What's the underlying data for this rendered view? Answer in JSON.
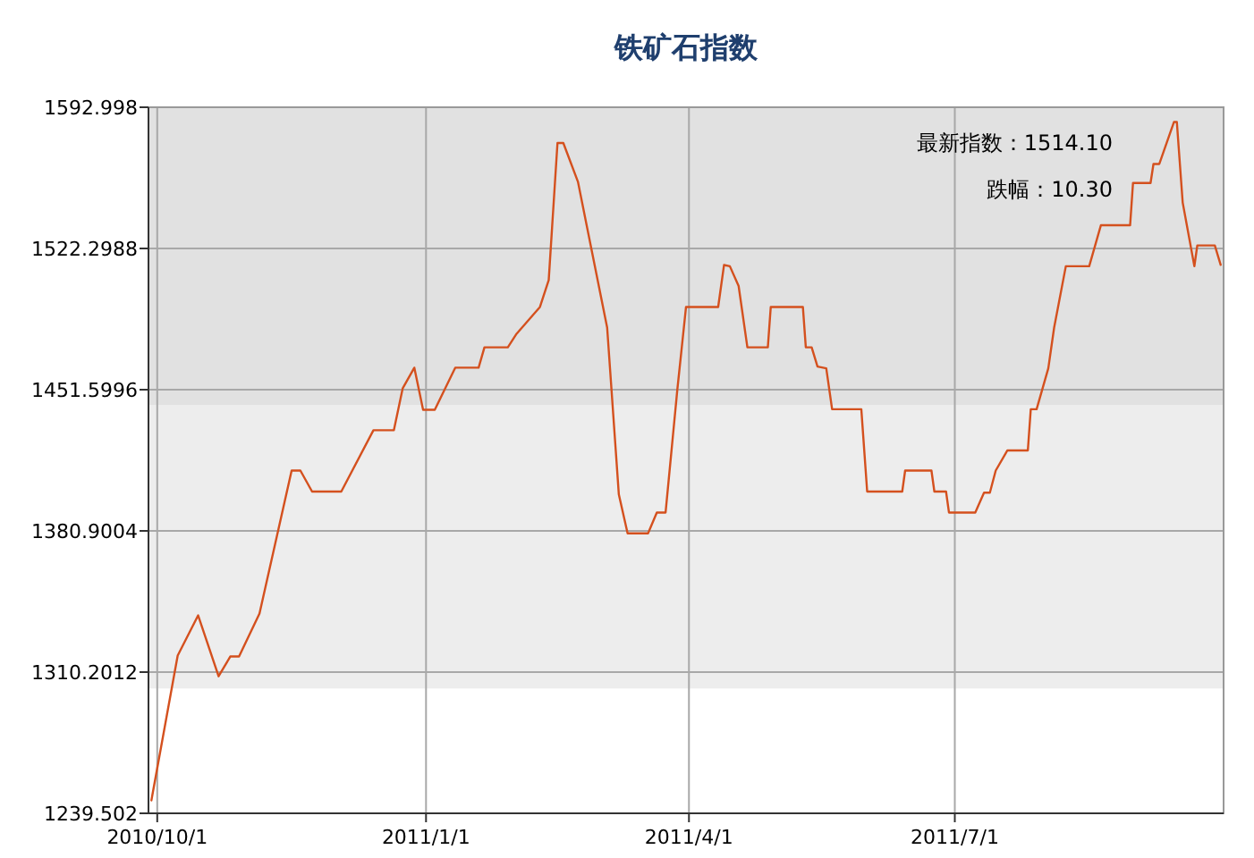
{
  "chart_data": {
    "type": "line",
    "title": "铁矿石指数",
    "x": [
      "2010-09-29",
      "2010-10-08",
      "2010-10-15",
      "2010-10-22",
      "2010-10-26",
      "2010-10-29",
      "2010-11-05",
      "2010-11-16",
      "2010-11-19",
      "2010-11-23",
      "2010-12-03",
      "2010-12-14",
      "2010-12-21",
      "2010-12-24",
      "2010-12-28",
      "2010-12-31",
      "2011-01-04",
      "2011-01-11",
      "2011-01-19",
      "2011-01-21",
      "2011-01-29",
      "2011-02-01",
      "2011-02-09",
      "2011-02-12",
      "2011-02-15",
      "2011-02-17",
      "2011-02-22",
      "2011-03-04",
      "2011-03-08",
      "2011-03-11",
      "2011-03-18",
      "2011-03-21",
      "2011-03-24",
      "2011-03-28",
      "2011-03-31",
      "2011-04-11",
      "2011-04-13",
      "2011-04-15",
      "2011-04-18",
      "2011-04-21",
      "2011-04-28",
      "2011-04-29",
      "2011-05-10",
      "2011-05-11",
      "2011-05-13",
      "2011-05-15",
      "2011-05-18",
      "2011-05-20",
      "2011-05-30",
      "2011-06-01",
      "2011-06-13",
      "2011-06-14",
      "2011-06-23",
      "2011-06-24",
      "2011-06-28",
      "2011-06-29",
      "2011-07-08",
      "2011-07-11",
      "2011-07-13",
      "2011-07-15",
      "2011-07-19",
      "2011-07-26",
      "2011-07-27",
      "2011-07-29",
      "2011-08-02",
      "2011-08-04",
      "2011-08-08",
      "2011-08-16",
      "2011-08-20",
      "2011-08-30",
      "2011-08-31",
      "2011-09-06",
      "2011-09-07",
      "2011-09-09",
      "2011-09-14",
      "2011-09-15",
      "2011-09-17",
      "2011-09-21",
      "2011-09-22",
      "2011-09-28",
      "2011-09-30"
    ],
    "series": [
      {
        "color": "#d4501e",
        "values": [
          1246.0,
          1318.5,
          1338.6,
          1308.1,
          1318.0,
          1318.0,
          1339.5,
          1411.1,
          1411.1,
          1400.6,
          1400.6,
          1431.3,
          1431.3,
          1452.2,
          1462.6,
          1441.5,
          1441.5,
          1462.6,
          1462.6,
          1472.8,
          1472.8,
          1479.6,
          1493.0,
          1506.5,
          1575.1,
          1575.1,
          1555.7,
          1482.7,
          1399.1,
          1379.7,
          1379.7,
          1390.1,
          1390.1,
          1451.3,
          1493.0,
          1493.0,
          1514.0,
          1513.4,
          1503.5,
          1472.8,
          1472.8,
          1493.0,
          1493.0,
          1472.8,
          1472.8,
          1463.2,
          1462.3,
          1441.8,
          1441.8,
          1400.6,
          1400.6,
          1411.1,
          1411.1,
          1400.6,
          1400.6,
          1390.1,
          1390.1,
          1400.0,
          1400.0,
          1411.1,
          1421.2,
          1421.2,
          1441.8,
          1441.8,
          1462.3,
          1482.7,
          1513.4,
          1513.4,
          1533.9,
          1533.9,
          1555.1,
          1555.1,
          1564.6,
          1564.6,
          1585.6,
          1585.6,
          1545.3,
          1513.4,
          1523.8,
          1523.8,
          1514.1
        ]
      }
    ],
    "xlim": [
      "2010-09-28",
      "2011-10-01"
    ],
    "xticks": [
      {
        "value": "2010-10-01",
        "label": "2010/10/1"
      },
      {
        "value": "2011-01-01",
        "label": "2011/1/1"
      },
      {
        "value": "2011-04-01",
        "label": "2011/4/1"
      },
      {
        "value": "2011-07-01",
        "label": "2011/7/1"
      }
    ],
    "ylim": [
      1239.502,
      1592.998
    ],
    "yticks": [
      1239.502,
      1310.2012,
      1380.9004,
      1451.5996,
      1522.2988,
      1592.998
    ],
    "grid": true,
    "bands": [
      {
        "axis": "y",
        "from": 1302.0,
        "to": 1443.8,
        "color": "#ededed"
      },
      {
        "axis": "y",
        "from": 1443.8,
        "to": 1592.998,
        "color": "#e1e1e1"
      }
    ],
    "annotations": [
      "最新指数：1514.10",
      "跌幅：10.30"
    ]
  }
}
